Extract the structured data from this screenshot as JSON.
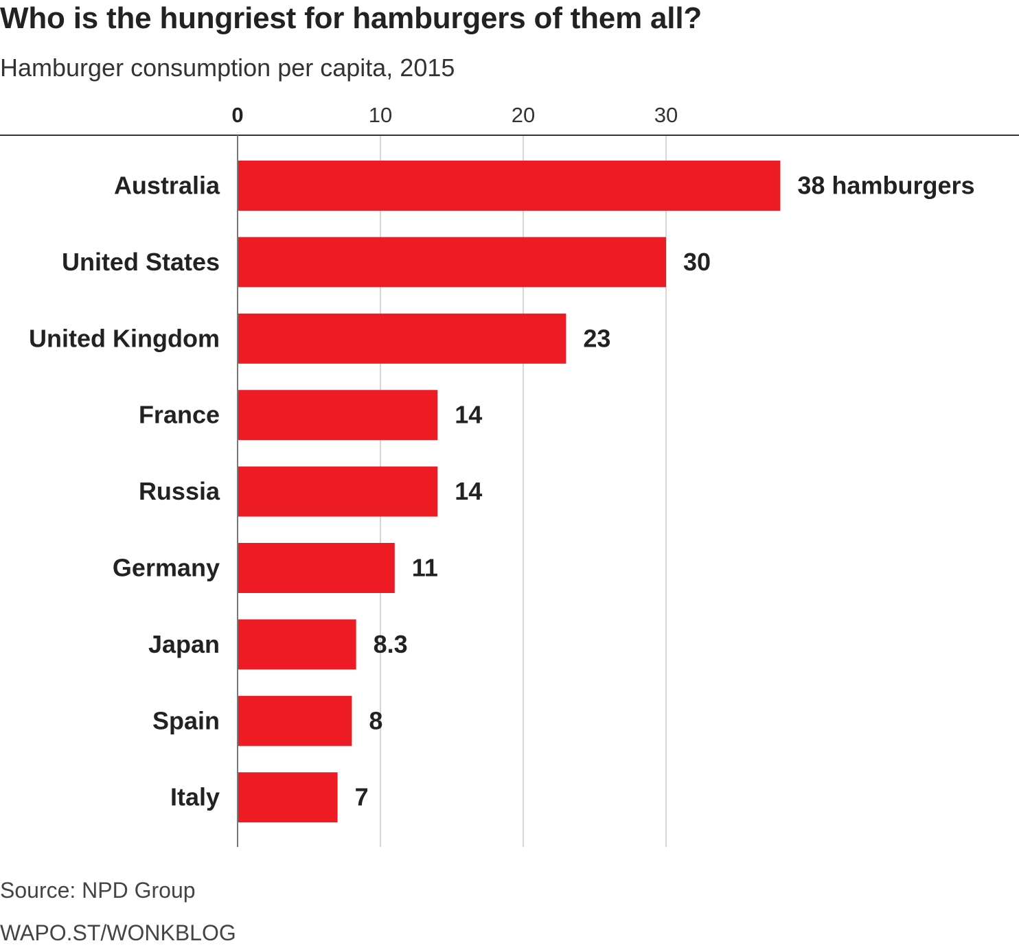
{
  "title": "Who is the hungriest for hamburgers of them all?",
  "subtitle": "Hamburger consumption per capita, 2015",
  "source": "Source: NPD Group",
  "credit": "WAPO.ST/WONKBLOG",
  "colors": {
    "bar": "#ed1c24",
    "axis": "#333333",
    "grid": "#c8c8c8",
    "text": "#222222"
  },
  "chart_data": {
    "type": "bar",
    "orientation": "horizontal",
    "categories": [
      "Australia",
      "United States",
      "United Kingdom",
      "France",
      "Russia",
      "Germany",
      "Japan",
      "Spain",
      "Italy"
    ],
    "values": [
      38,
      30,
      23,
      14,
      14,
      11,
      8.3,
      8,
      7
    ],
    "value_labels": [
      "38 hamburgers",
      "30",
      "23",
      "14",
      "14",
      "11",
      "8.3",
      "8",
      "7"
    ],
    "x_ticks": [
      "0",
      "10",
      "20",
      "30"
    ],
    "x_tick_values": [
      0,
      10,
      20,
      30
    ],
    "xlim": [
      0,
      40
    ],
    "grid": true
  }
}
